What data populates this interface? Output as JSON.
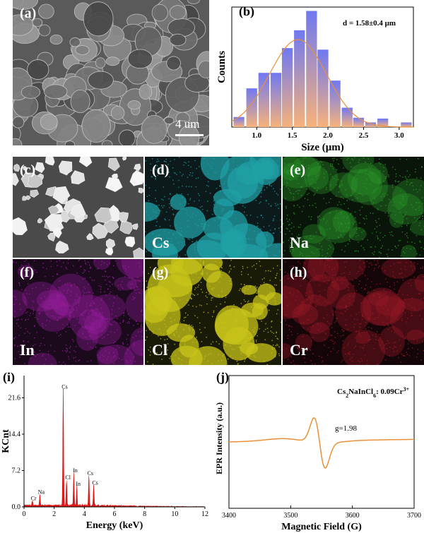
{
  "panels": {
    "a": {
      "tag": "(a)",
      "scale_label": "4 um"
    },
    "b": {
      "tag": "(b)",
      "annotation": "d = 1.58±0.4 μm"
    },
    "c": {
      "tag": "(c)"
    },
    "d": {
      "tag": "(d)",
      "element": "Cs",
      "color": "#1fa0a6"
    },
    "e": {
      "tag": "(e)",
      "element": "Na",
      "color": "#2a9a2a"
    },
    "f": {
      "tag": "(f)",
      "element": "In",
      "color": "#9b1ea0"
    },
    "g": {
      "tag": "(g)",
      "element": "Cl",
      "color": "#c8c41a"
    },
    "h": {
      "tag": "(h)",
      "element": "Cr",
      "color": "#a01a28"
    },
    "i": {
      "tag": "(i)"
    },
    "j": {
      "tag": "(j)",
      "annotation_main": "Cs",
      "annotation_formula": "Cs2NaInCl6: 0.09Cr3+",
      "g_label": "g=1.98"
    }
  },
  "chart_data": [
    {
      "id": "b",
      "type": "bar",
      "xlabel": "Size (μm)",
      "ylabel": "Counts",
      "xticks": [
        "1.0",
        "1.5",
        "2.0",
        "2.5",
        "3.0"
      ],
      "xlim": [
        0.65,
        3.2
      ],
      "ylim": [
        0,
        15.5
      ],
      "bin_width": 0.165,
      "x": [
        0.75,
        0.93,
        1.1,
        1.27,
        1.43,
        1.6,
        1.77,
        1.93,
        2.1,
        2.27,
        2.43,
        2.6,
        2.77,
        3.1
      ],
      "values": [
        1.3,
        5,
        7,
        7,
        10.2,
        12.5,
        15,
        10,
        6,
        2.5,
        1.2,
        0.6,
        1.1,
        0.6
      ],
      "fit": {
        "type": "gaussian",
        "mean": 1.58,
        "sigma": 0.4,
        "peak": 11.3
      },
      "annotation": "d = 1.58±0.4 μm"
    },
    {
      "id": "i",
      "type": "line",
      "xlabel": "Energy (keV)",
      "ylabel": "KCnt",
      "xticks": [
        "0",
        "2",
        "4",
        "6",
        "8",
        "10",
        "12"
      ],
      "yticks": [
        "0.0",
        "7.2",
        "14.4",
        "21.6"
      ],
      "xlim": [
        0,
        12
      ],
      "ylim": [
        0,
        26
      ],
      "peaks": [
        {
          "label": "Cr",
          "x": 0.55,
          "y": 0.9
        },
        {
          "label": "Na",
          "x": 1.05,
          "y": 2.2
        },
        {
          "label": "Cs",
          "x": 2.6,
          "y": 23.0
        },
        {
          "label": "Cl",
          "x": 2.82,
          "y": 5.0
        },
        {
          "label": "In",
          "x": 3.3,
          "y": 6.4
        },
        {
          "label": "In",
          "x": 3.5,
          "y": 3.8
        },
        {
          "label": "Cs",
          "x": 4.3,
          "y": 5.9
        },
        {
          "label": "Cs",
          "x": 4.62,
          "y": 4.0
        }
      ]
    },
    {
      "id": "j",
      "type": "line",
      "xlabel": "Magnetic  Field (G)",
      "ylabel": "EPR Intensity (a.u.)",
      "xticks": [
        "3400",
        "3500",
        "3600",
        "3700"
      ],
      "xlim": [
        3400,
        3700
      ],
      "annotation": "g=1.98"
    }
  ]
}
